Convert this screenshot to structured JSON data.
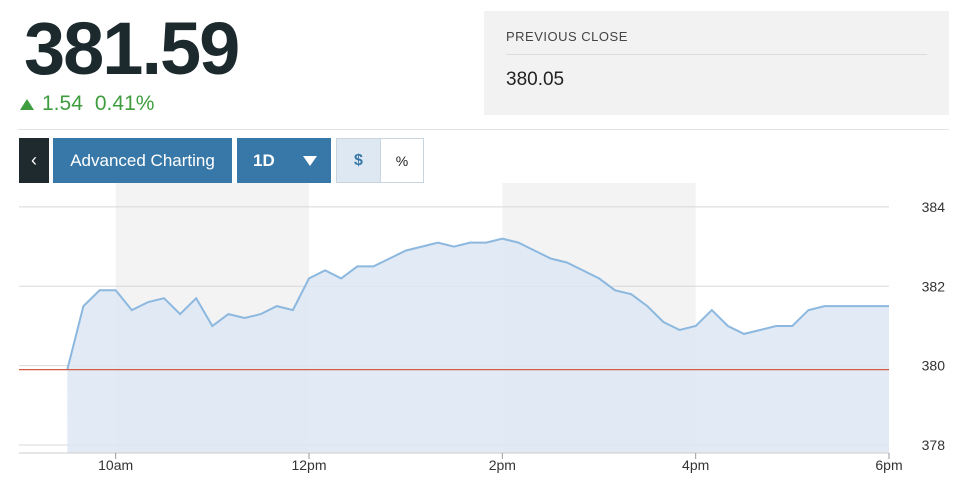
{
  "quote": {
    "price": "381.59",
    "change": "1.54",
    "change_percent": "0.41%",
    "direction": "up",
    "change_color": "#3f9d3f"
  },
  "previous_close": {
    "label": "PREVIOUS CLOSE",
    "value": "380.05"
  },
  "toolbar": {
    "back_glyph": "‹",
    "advanced_label": "Advanced Charting",
    "range_label": "1D",
    "dollar_label": "$",
    "percent_label": "%",
    "selected_mode": "$",
    "accent_color": "#3878a8"
  },
  "chart_data": {
    "type": "area",
    "series": [
      {
        "x": [
          "9:30",
          "9:40",
          "9:50",
          "10:00",
          "10:10",
          "10:20",
          "10:30",
          "10:40",
          "10:50",
          "11:00",
          "11:10",
          "11:20",
          "11:30",
          "11:40",
          "11:50",
          "12:00",
          "12:10",
          "12:20",
          "12:30",
          "12:40",
          "12:50",
          "13:00",
          "13:10",
          "13:20",
          "13:30",
          "13:40",
          "13:50",
          "14:00",
          "14:10",
          "14:20",
          "14:30",
          "14:40",
          "14:50",
          "15:00",
          "15:10",
          "15:20",
          "15:30",
          "15:40",
          "15:50",
          "16:00",
          "16:10",
          "16:20",
          "16:30",
          "16:40",
          "16:50",
          "17:00",
          "17:10",
          "17:20",
          "17:30",
          "18:00"
        ],
        "y": [
          379.9,
          381.5,
          381.9,
          381.9,
          381.4,
          381.6,
          381.7,
          381.3,
          381.7,
          381.0,
          381.3,
          381.2,
          381.3,
          381.5,
          381.4,
          382.2,
          382.4,
          382.2,
          382.5,
          382.5,
          382.7,
          382.9,
          383.0,
          383.1,
          383.0,
          383.1,
          383.1,
          383.2,
          383.1,
          382.9,
          382.7,
          382.6,
          382.4,
          382.2,
          381.9,
          381.8,
          381.5,
          381.1,
          380.9,
          381.0,
          381.4,
          381.0,
          380.8,
          380.9,
          381.0,
          381.0,
          381.4,
          381.5,
          381.5,
          381.5
        ]
      }
    ],
    "reference_line": 379.9,
    "xticks": [
      "10am",
      "12pm",
      "2pm",
      "4pm",
      "6pm"
    ],
    "xtick_hours": [
      10,
      12,
      14,
      16,
      18
    ],
    "x_range_hours": [
      9,
      18
    ],
    "yticks": [
      384,
      382,
      380,
      378
    ],
    "ylim": [
      377.8,
      384.3
    ],
    "grid": true,
    "line_color": "#8cb8df",
    "fill_color": "#dde8f3",
    "reference_color": "#d05d45"
  }
}
